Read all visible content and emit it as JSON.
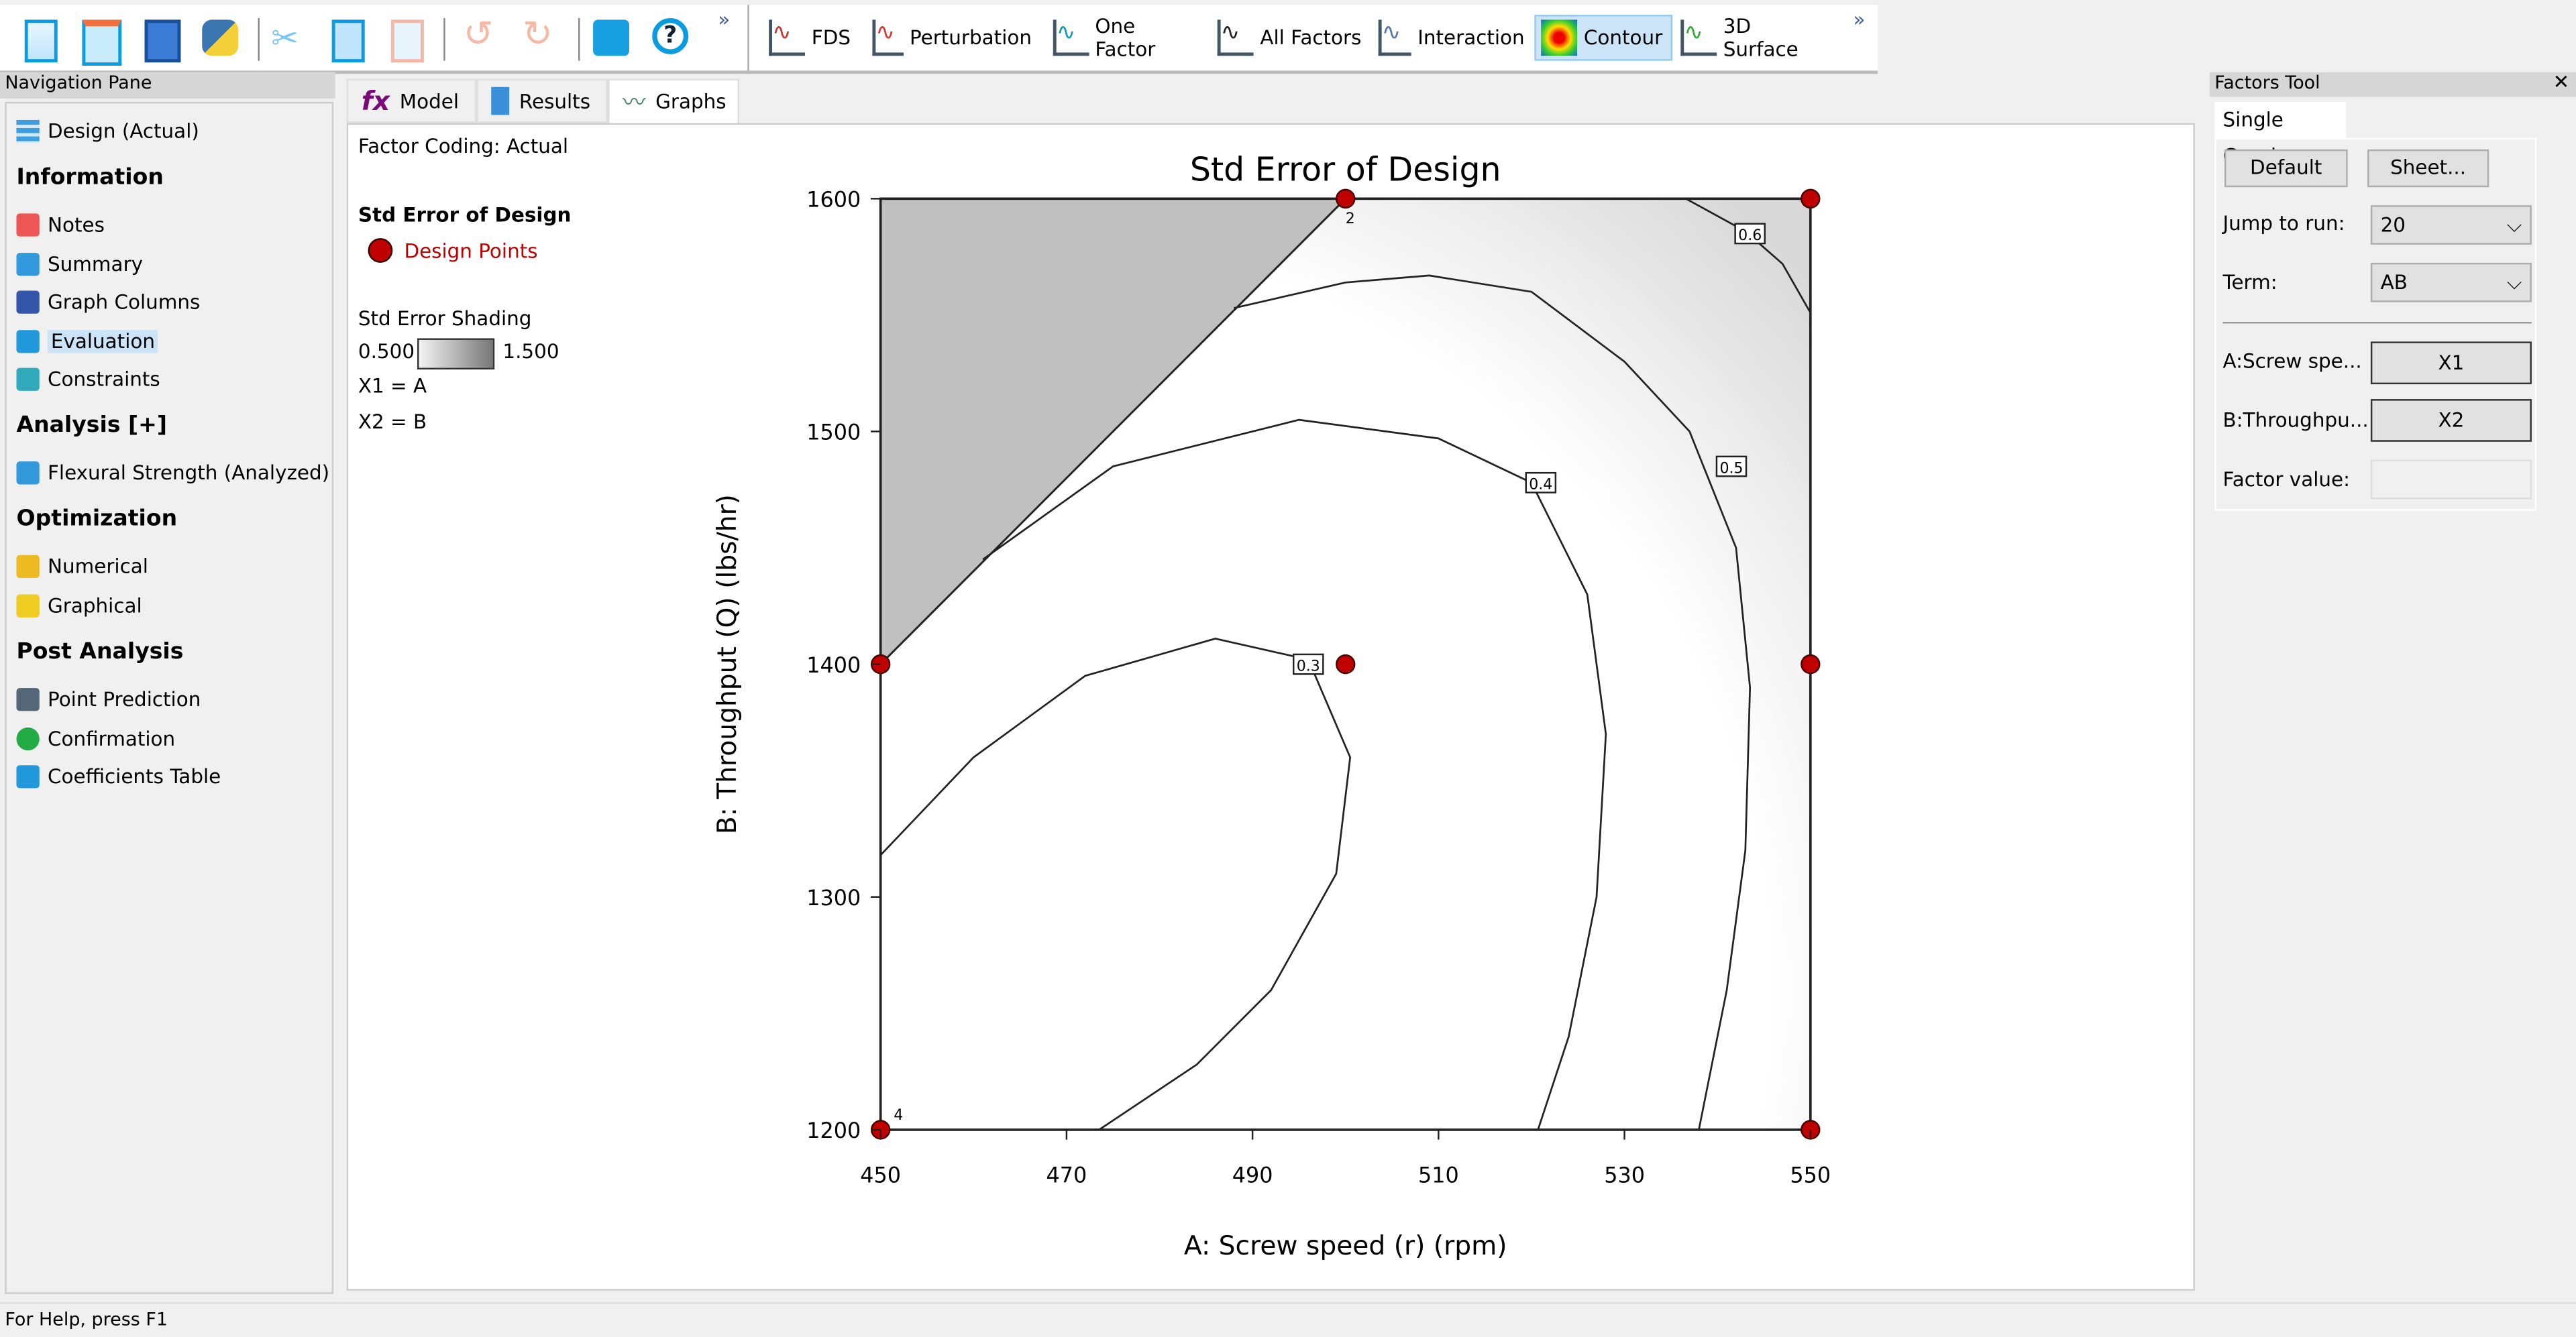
{
  "toolbar": {
    "file_icons": [
      "new-file",
      "open-folder",
      "save",
      "python",
      "cut",
      "copy",
      "paste",
      "undo",
      "redo",
      "print",
      "help"
    ],
    "more": "»",
    "graph_buttons": [
      {
        "label": "FDS",
        "icon": "fds-icon"
      },
      {
        "label": "Perturbation",
        "icon": "perturbation-icon"
      },
      {
        "label": "One Factor",
        "icon": "one-factor-icon"
      },
      {
        "label": "All Factors",
        "icon": "all-factors-icon"
      },
      {
        "label": "Interaction",
        "icon": "interaction-icon"
      },
      {
        "label": "Contour",
        "icon": "contour-icon",
        "active": true
      },
      {
        "label": "3D Surface",
        "icon": "surface-icon"
      }
    ],
    "more2": "»"
  },
  "nav": {
    "title": "Navigation Pane",
    "design": "Design (Actual)",
    "info_header": "Information",
    "info_items": [
      "Notes",
      "Summary",
      "Graph Columns",
      "Evaluation",
      "Constraints"
    ],
    "analysis_header": "Analysis [+]",
    "analysis_items": [
      "Flexural Strength (Analyzed)"
    ],
    "opt_header": "Optimization",
    "opt_items": [
      "Numerical",
      "Graphical"
    ],
    "post_header": "Post Analysis",
    "post_items": [
      "Point Prediction",
      "Confirmation",
      "Coefficients Table"
    ],
    "selected": "Evaluation"
  },
  "tabs": [
    {
      "label": "Model"
    },
    {
      "label": "Results"
    },
    {
      "label": "Graphs",
      "active": true
    }
  ],
  "legend": {
    "coding": "Factor Coding: Actual",
    "title": "Std Error of Design",
    "points": "Design Points",
    "shading_title": "Std Error Shading",
    "shade_min": "0.500",
    "shade_max": "1.500",
    "x1": "X1 = A",
    "x2": "X2 = B"
  },
  "factors_tool": {
    "title": "Factors Tool",
    "close": "✕",
    "tab": "Single Graph",
    "default_btn": "Default",
    "sheet_btn": "Sheet...",
    "jump_label": "Jump to run:",
    "jump_value": "20",
    "term_label": "Term:",
    "term_value": "AB",
    "a_label": "A:Screw spe...",
    "a_value": "X1",
    "b_label": "B:Throughpu...",
    "b_value": "X2",
    "factor_value_label": "Factor value:",
    "factor_value": ""
  },
  "status": "For Help, press F1",
  "chart_data": {
    "type": "contour",
    "title": "Std Error of Design",
    "xlabel": "A: Screw speed (r) (rpm)",
    "ylabel": "B: Throughput (Q) (lbs/hr)",
    "xlim": [
      450,
      550
    ],
    "ylim": [
      1200,
      1600
    ],
    "xticks": [
      450,
      470,
      490,
      510,
      530,
      550
    ],
    "yticks": [
      1200,
      1300,
      1400,
      1500,
      1600
    ],
    "grid": false,
    "constraint_region": [
      [
        450,
        1600
      ],
      [
        500,
        1600
      ],
      [
        450,
        1400
      ]
    ],
    "contours": [
      {
        "level": "0.3",
        "points": [
          [
            450,
            1318
          ],
          [
            460,
            1360
          ],
          [
            472,
            1395
          ],
          [
            486,
            1411
          ],
          [
            496,
            1402
          ],
          [
            500.5,
            1360
          ],
          [
            499,
            1310
          ],
          [
            492,
            1260
          ],
          [
            484,
            1228
          ],
          [
            473.5,
            1200
          ]
        ],
        "label_at": [
          496,
          1400
        ]
      },
      {
        "level": "0.4",
        "points": [
          [
            461,
            1445
          ],
          [
            475,
            1485
          ],
          [
            495,
            1505
          ],
          [
            510,
            1497
          ],
          [
            520,
            1478
          ],
          [
            526,
            1430
          ],
          [
            528,
            1370
          ],
          [
            527,
            1300
          ],
          [
            524,
            1240
          ],
          [
            520.7,
            1200
          ]
        ],
        "label_at": [
          521,
          1478
        ]
      },
      {
        "level": "0.5",
        "points": [
          [
            488,
            1553
          ],
          [
            500,
            1564
          ],
          [
            509,
            1567
          ],
          [
            520,
            1560
          ],
          [
            530,
            1530
          ],
          [
            537,
            1500
          ],
          [
            542,
            1450
          ],
          [
            543.5,
            1390
          ],
          [
            543,
            1320
          ],
          [
            541,
            1260
          ],
          [
            538,
            1200
          ]
        ],
        "label_at": [
          541.5,
          1485
        ]
      },
      {
        "level": "0.6",
        "points": [
          [
            536.6,
            1600
          ],
          [
            543,
            1586
          ],
          [
            547,
            1572
          ],
          [
            550,
            1551
          ]
        ],
        "label_at": [
          543.5,
          1585
        ]
      }
    ],
    "design_points": [
      {
        "x": 500,
        "y": 1600,
        "label": "2"
      },
      {
        "x": 550,
        "y": 1600
      },
      {
        "x": 450,
        "y": 1400
      },
      {
        "x": 500,
        "y": 1400
      },
      {
        "x": 550,
        "y": 1400
      },
      {
        "x": 450,
        "y": 1200,
        "label": "4"
      },
      {
        "x": 550,
        "y": 1200
      }
    ],
    "colors": {
      "design_point": "#c00000",
      "constraint": "#c0c0c0"
    }
  }
}
